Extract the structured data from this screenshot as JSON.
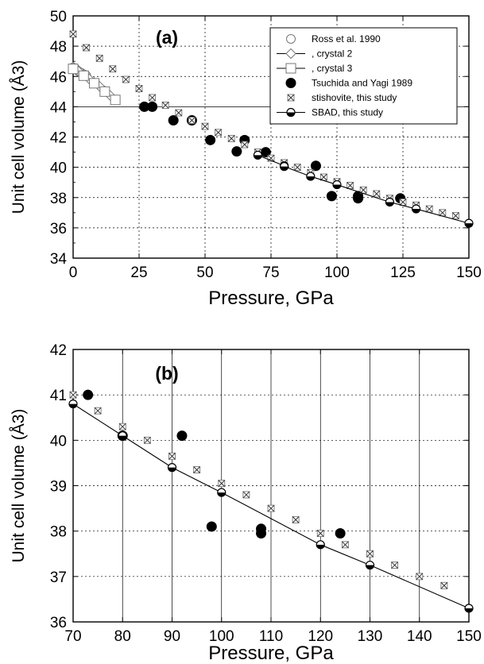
{
  "chart_data": [
    {
      "type": "scatter",
      "panel_label": "(a)",
      "xlabel": "Pressure, GPa",
      "ylabel": "Unit cell volume (Å3)",
      "xlim": [
        0,
        150
      ],
      "ylim": [
        34,
        50
      ],
      "x_ticks": [
        "0",
        "25",
        "50",
        "75",
        "100",
        "125",
        "150"
      ],
      "y_ticks": [
        "34",
        "36",
        "38",
        "40",
        "42",
        "44",
        "46",
        "48",
        "50"
      ],
      "grid": true,
      "legend_position": "top-right",
      "series": [
        {
          "name": "Ross et al. 1990",
          "marker": "open-circle",
          "x": [
            0,
            1,
            2,
            3,
            4,
            5
          ],
          "y": [
            46.6,
            46.5,
            46.35,
            46.25,
            46.15,
            46.05
          ]
        },
        {
          "name": ", crystal 2",
          "marker": "open-diamond",
          "x": [
            0,
            2,
            4,
            6,
            8,
            10,
            12,
            14
          ],
          "y": [
            46.6,
            46.35,
            46.1,
            45.85,
            45.6,
            45.35,
            45.05,
            44.75
          ]
        },
        {
          "name": ", crystal 3",
          "marker": "open-square",
          "x": [
            0,
            4,
            8,
            12,
            16
          ],
          "y": [
            46.5,
            46.05,
            45.55,
            45.0,
            44.45
          ]
        },
        {
          "name": "Tsuchida and Yagi 1989",
          "marker": "filled-circle",
          "x": [
            27,
            30,
            38,
            45,
            52,
            62,
            65,
            73,
            92,
            98,
            108,
            108,
            124
          ],
          "y": [
            44.0,
            44.0,
            43.1,
            43.1,
            41.8,
            41.05,
            41.8,
            41.0,
            40.1,
            38.1,
            38.1,
            37.95,
            37.95
          ]
        },
        {
          "name": "stishovite, this study",
          "marker": "cross-square",
          "x": [
            0,
            5,
            10,
            15,
            20,
            25,
            30,
            35,
            40,
            45,
            50,
            55,
            60,
            65,
            70,
            75,
            80,
            85,
            90,
            95,
            100,
            105,
            110,
            115,
            120,
            125,
            130,
            135,
            140,
            145
          ],
          "y": [
            48.8,
            47.9,
            47.2,
            46.5,
            45.8,
            45.2,
            44.6,
            44.1,
            43.6,
            43.1,
            42.7,
            42.3,
            41.9,
            41.5,
            41.0,
            40.6,
            40.3,
            40.0,
            39.65,
            39.35,
            39.05,
            38.8,
            38.5,
            38.25,
            37.95,
            37.7,
            37.5,
            37.25,
            37.0,
            36.8
          ]
        },
        {
          "name": "SBAD, this study",
          "marker": "half-filled-circle-with-line",
          "x": [
            70,
            80,
            80,
            90,
            100,
            120,
            130,
            150
          ],
          "y": [
            40.8,
            40.1,
            40.05,
            39.4,
            38.85,
            37.7,
            37.25,
            36.3
          ]
        }
      ],
      "legend_entries": [
        {
          "name": "Ross et al. 1990",
          "marker": "open-circle",
          "line": false
        },
        {
          "name": ", crystal 2",
          "marker": "open-diamond",
          "line": true
        },
        {
          "name": ", crystal 3",
          "marker": "open-square",
          "line": true
        },
        {
          "name": "Tsuchida and Yagi 1989",
          "marker": "filled-circle",
          "line": false
        },
        {
          "name": "stishovite, this study",
          "marker": "cross-square",
          "line": false
        },
        {
          "name": "SBAD, this study",
          "marker": "half-filled-circle-with-line",
          "line": true
        }
      ]
    },
    {
      "type": "scatter",
      "panel_label": "(b)",
      "xlabel": "Pressure, GPa",
      "ylabel": "Unit cell volume (Å3)",
      "xlim": [
        70,
        150
      ],
      "ylim": [
        36,
        42
      ],
      "x_ticks": [
        "70",
        "80",
        "90",
        "100",
        "110",
        "120",
        "130",
        "140",
        "150"
      ],
      "y_ticks": [
        "36",
        "37",
        "38",
        "39",
        "40",
        "41",
        "42"
      ],
      "grid": true,
      "series": [
        {
          "name": "Tsuchida and Yagi 1989",
          "marker": "filled-circle",
          "x": [
            73,
            80,
            92,
            98,
            108,
            108,
            124
          ],
          "y": [
            41.0,
            40.1,
            40.1,
            38.1,
            38.05,
            37.95,
            37.95
          ]
        },
        {
          "name": "stishovite, this study",
          "marker": "cross-square",
          "x": [
            70,
            75,
            80,
            85,
            90,
            95,
            100,
            105,
            110,
            115,
            120,
            125,
            130,
            135,
            140,
            145
          ],
          "y": [
            41.0,
            40.65,
            40.3,
            40.0,
            39.65,
            39.35,
            39.05,
            38.8,
            38.5,
            38.25,
            37.95,
            37.7,
            37.5,
            37.25,
            37.0,
            36.8
          ]
        },
        {
          "name": "SBAD, this study",
          "marker": "half-filled-circle-with-line",
          "x": [
            70,
            80,
            90,
            100,
            120,
            130,
            150
          ],
          "y": [
            40.8,
            40.1,
            39.4,
            38.85,
            37.7,
            37.25,
            36.3
          ]
        }
      ]
    }
  ]
}
